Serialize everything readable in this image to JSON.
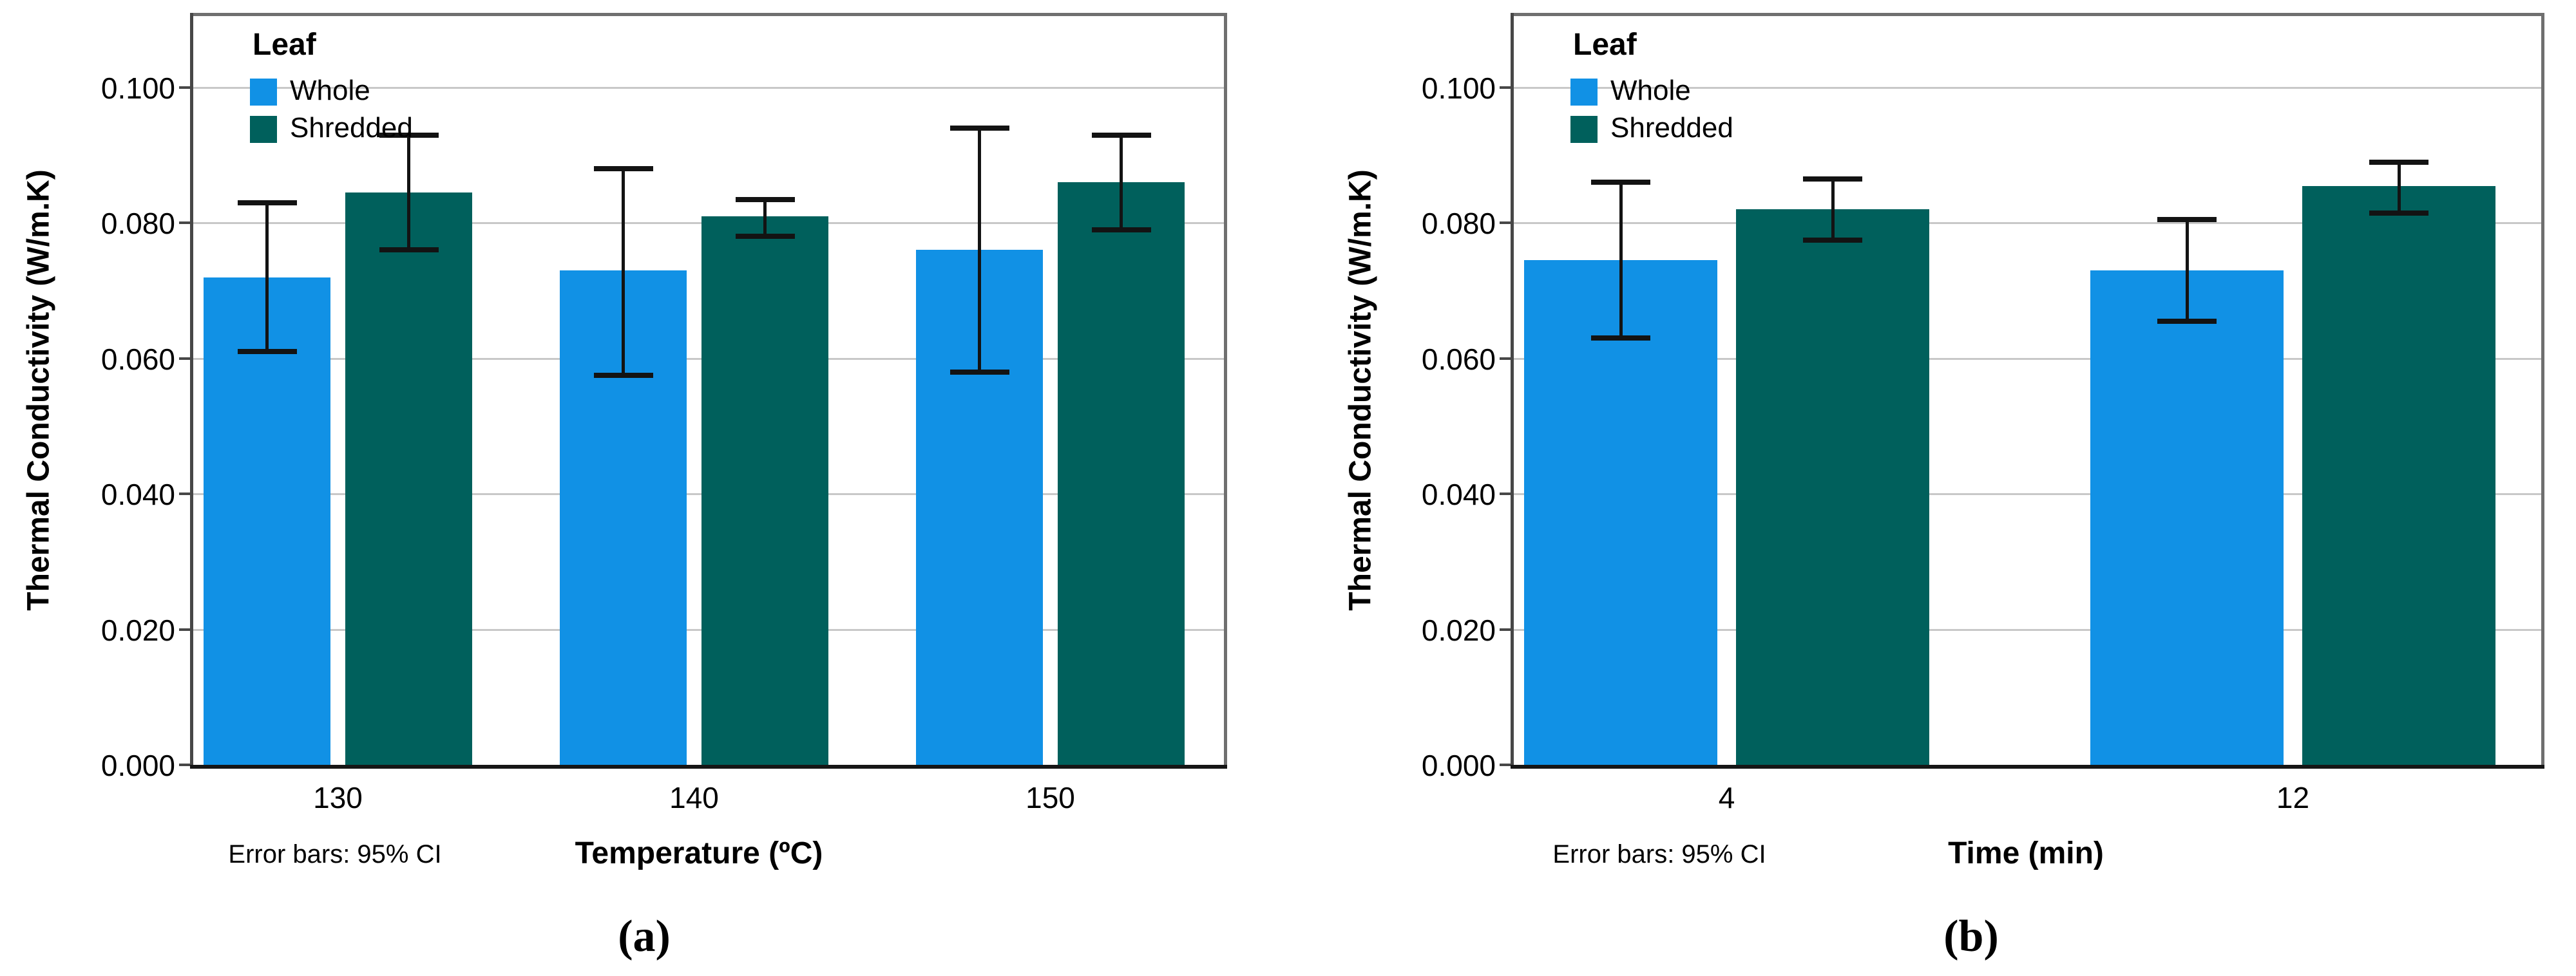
{
  "figure_title": "",
  "colors": {
    "whole": "#1191e5",
    "shredded": "#00605c",
    "gridline": "#c8c8c8",
    "frame": "#6f6f6f",
    "axis": "#474747",
    "baseline": "#161616",
    "error_bar": "#131313",
    "text": "#000000",
    "background": "#ffffff"
  },
  "chart_data": [
    {
      "type": "bar",
      "title": "",
      "categories": [
        "130",
        "140",
        "150"
      ],
      "xlabel": "Temperature (ºC)",
      "ylabel": "Thermal Conductivity (W/m.K)",
      "ylim": [
        0,
        0.1106
      ],
      "yticks": [
        0,
        0.02,
        0.04,
        0.06,
        0.08,
        0.1
      ],
      "ytick_labels": [
        "0.000",
        "0.020",
        "0.040",
        "0.060",
        "0.080",
        "0.100"
      ],
      "grid": true,
      "legend_title": "Leaf",
      "legend_position": "top-left-inside",
      "footnote": "Error bars: 95% CI",
      "caption": "(a)",
      "series": [
        {
          "name": "Whole",
          "color_key": "whole",
          "values": [
            0.072,
            0.073,
            0.076
          ],
          "ci_low": [
            0.061,
            0.0575,
            0.058
          ],
          "ci_high": [
            0.083,
            0.088,
            0.094
          ]
        },
        {
          "name": "Shredded",
          "color_key": "shredded",
          "values": [
            0.0845,
            0.081,
            0.086
          ],
          "ci_low": [
            0.076,
            0.078,
            0.079
          ],
          "ci_high": [
            0.093,
            0.0835,
            0.093
          ]
        }
      ]
    },
    {
      "type": "bar",
      "title": "",
      "categories": [
        "4",
        "12"
      ],
      "xlabel": "Time (min)",
      "ylabel": "Thermal Conductivity (W/m.K)",
      "ylim": [
        0,
        0.1106
      ],
      "yticks": [
        0,
        0.02,
        0.04,
        0.06,
        0.08,
        0.1
      ],
      "ytick_labels": [
        "0.000",
        "0.020",
        "0.040",
        "0.060",
        "0.080",
        "0.100"
      ],
      "grid": true,
      "legend_title": "Leaf",
      "legend_position": "top-left-inside",
      "footnote": "Error bars: 95% CI",
      "caption": "(b)",
      "series": [
        {
          "name": "Whole",
          "color_key": "whole",
          "values": [
            0.0745,
            0.073
          ],
          "ci_low": [
            0.063,
            0.0655
          ],
          "ci_high": [
            0.086,
            0.0805
          ]
        },
        {
          "name": "Shredded",
          "color_key": "shredded",
          "values": [
            0.082,
            0.0855
          ],
          "ci_low": [
            0.0775,
            0.0815
          ],
          "ci_high": [
            0.0865,
            0.089
          ]
        }
      ]
    }
  ]
}
